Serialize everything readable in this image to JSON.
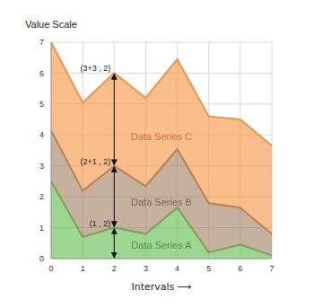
{
  "chart_data": {
    "type": "area",
    "stacked": true,
    "grid": true,
    "ylabel": "Value Scale",
    "xlabel": "Intervals ⟶",
    "x": [
      0,
      1,
      2,
      3,
      4,
      5,
      6,
      7
    ],
    "xlim": [
      0,
      7
    ],
    "xticks": [
      0,
      1,
      2,
      3,
      4,
      5,
      6,
      7
    ],
    "ylim": [
      0,
      7
    ],
    "yticks": [
      0,
      1,
      2,
      3,
      4,
      5,
      6,
      7
    ],
    "series": [
      {
        "name": "Data Series A",
        "color": "#5cba47",
        "values": [
          2.5,
          0.7,
          1.0,
          0.8,
          1.65,
          0.2,
          0.45,
          0.1
        ]
      },
      {
        "name": "Data Series B",
        "color": "#a07c5e",
        "values": [
          1.65,
          1.5,
          2.0,
          1.55,
          1.9,
          1.6,
          1.2,
          0.7
        ]
      },
      {
        "name": "Data Series C",
        "color": "#f5923e",
        "values": [
          2.85,
          2.85,
          3.0,
          2.85,
          2.9,
          2.8,
          2.85,
          2.85
        ]
      }
    ],
    "annotations": [
      {
        "text": "(1 , 2)",
        "series": "Data Series A",
        "x": 2
      },
      {
        "text": "(2+1 , 2)",
        "series": "Data Series B",
        "x": 2
      },
      {
        "text": "(3+3 , 2)",
        "series": "Data Series C",
        "x": 2
      }
    ]
  }
}
